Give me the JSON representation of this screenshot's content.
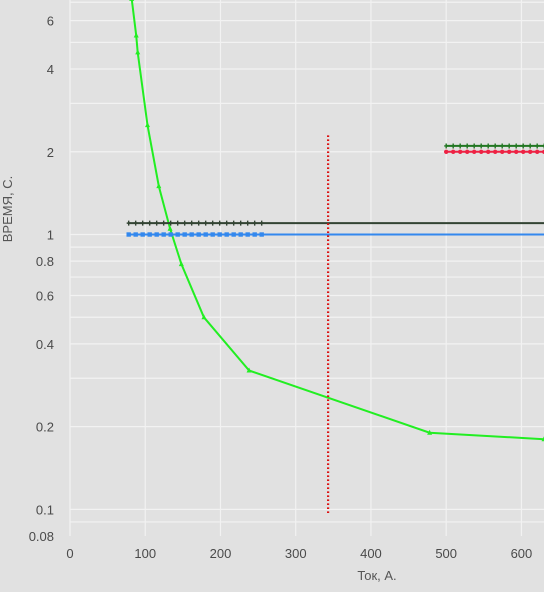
{
  "chart_data": {
    "type": "line",
    "xlabel": "Ток, А.",
    "ylabel": "ВРЕМЯ, С.",
    "y_scale": "log",
    "xlim": [
      0,
      630
    ],
    "ylim": [
      0.08,
      7.5
    ],
    "grid": true,
    "x_ticks": [
      0,
      100,
      200,
      300,
      400,
      500,
      600
    ],
    "y_ticks": [
      0.08,
      0.1,
      0.2,
      0.4,
      0.6,
      0.8,
      1,
      2,
      4,
      6
    ],
    "y_tick_labels": [
      "0.08",
      "0.1",
      "0.2",
      "0.4",
      "0.6",
      "0.8",
      "1",
      "2",
      "4",
      "6"
    ],
    "colors": {
      "background": "#e1e1e1",
      "grid": "#f2f2f2",
      "green_curve": "#22ee22",
      "blue_line": "#3388ee",
      "dark_line": "#334433",
      "red_dotted": "#dd1111",
      "dark_green_line": "#227722",
      "red_line": "#ee2244"
    },
    "series": [
      {
        "color": "#22ee22",
        "style": "solid",
        "marker": "triangle",
        "x": [
          82,
          88,
          90,
          103,
          118,
          133,
          148,
          178,
          238,
          478,
          630
        ],
        "y": [
          7.2,
          5.3,
          4.6,
          2.5,
          1.5,
          1.05,
          0.78,
          0.5,
          0.32,
          0.19,
          0.18
        ]
      },
      {
        "color": "#3388ee",
        "style": "solid",
        "marker": "square",
        "marker_x_range": [
          78,
          260
        ],
        "x": [
          78,
          630
        ],
        "y": [
          1.0,
          1.0
        ]
      },
      {
        "color": "#334433",
        "style": "solid",
        "marker": "cross",
        "marker_x_range": [
          78,
          260
        ],
        "x": [
          78,
          630
        ],
        "y": [
          1.1,
          1.1
        ]
      },
      {
        "color": "#dd1111",
        "style": "dotted",
        "marker": "none",
        "x": [
          343,
          343
        ],
        "y": [
          0.097,
          2.3
        ]
      },
      {
        "color": "#227722",
        "style": "solid",
        "marker": "cross",
        "marker_x_range": [
          500,
          630
        ],
        "x": [
          500,
          630
        ],
        "y": [
          2.1,
          2.1
        ]
      },
      {
        "color": "#ee2244",
        "style": "solid",
        "marker": "circle",
        "marker_x_range": [
          500,
          630
        ],
        "x": [
          500,
          630
        ],
        "y": [
          2.0,
          2.0
        ]
      }
    ]
  }
}
